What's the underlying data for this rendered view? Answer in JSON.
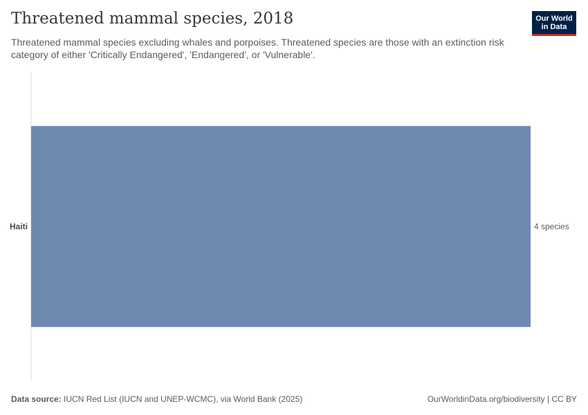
{
  "header": {
    "title": "Threatened mammal species, 2018",
    "subtitle": "Threatened mammal species excluding whales and porpoises. Threatened species are those with an extinction risk category of either 'Critically Endangered', 'Endangered', or 'Vulnerable'."
  },
  "logo": {
    "line1": "Our World",
    "line2": "in Data"
  },
  "footer": {
    "source_label": "Data source:",
    "source_text": "IUCN Red List (IUCN and UNEP-WCMC), via World Bank (2025)",
    "right_text": "OurWorldinData.org/biodiversity | CC BY"
  },
  "colors": {
    "bar": "#6f88b0",
    "axis": "#dddddd",
    "logo_bg": "#002147",
    "logo_accent": "#ce261e"
  },
  "chart_data": {
    "type": "bar",
    "orientation": "horizontal",
    "categories": [
      "Haiti"
    ],
    "values": [
      4
    ],
    "value_labels": [
      "4 species"
    ],
    "unit": "species",
    "xlim": [
      0,
      4
    ]
  }
}
